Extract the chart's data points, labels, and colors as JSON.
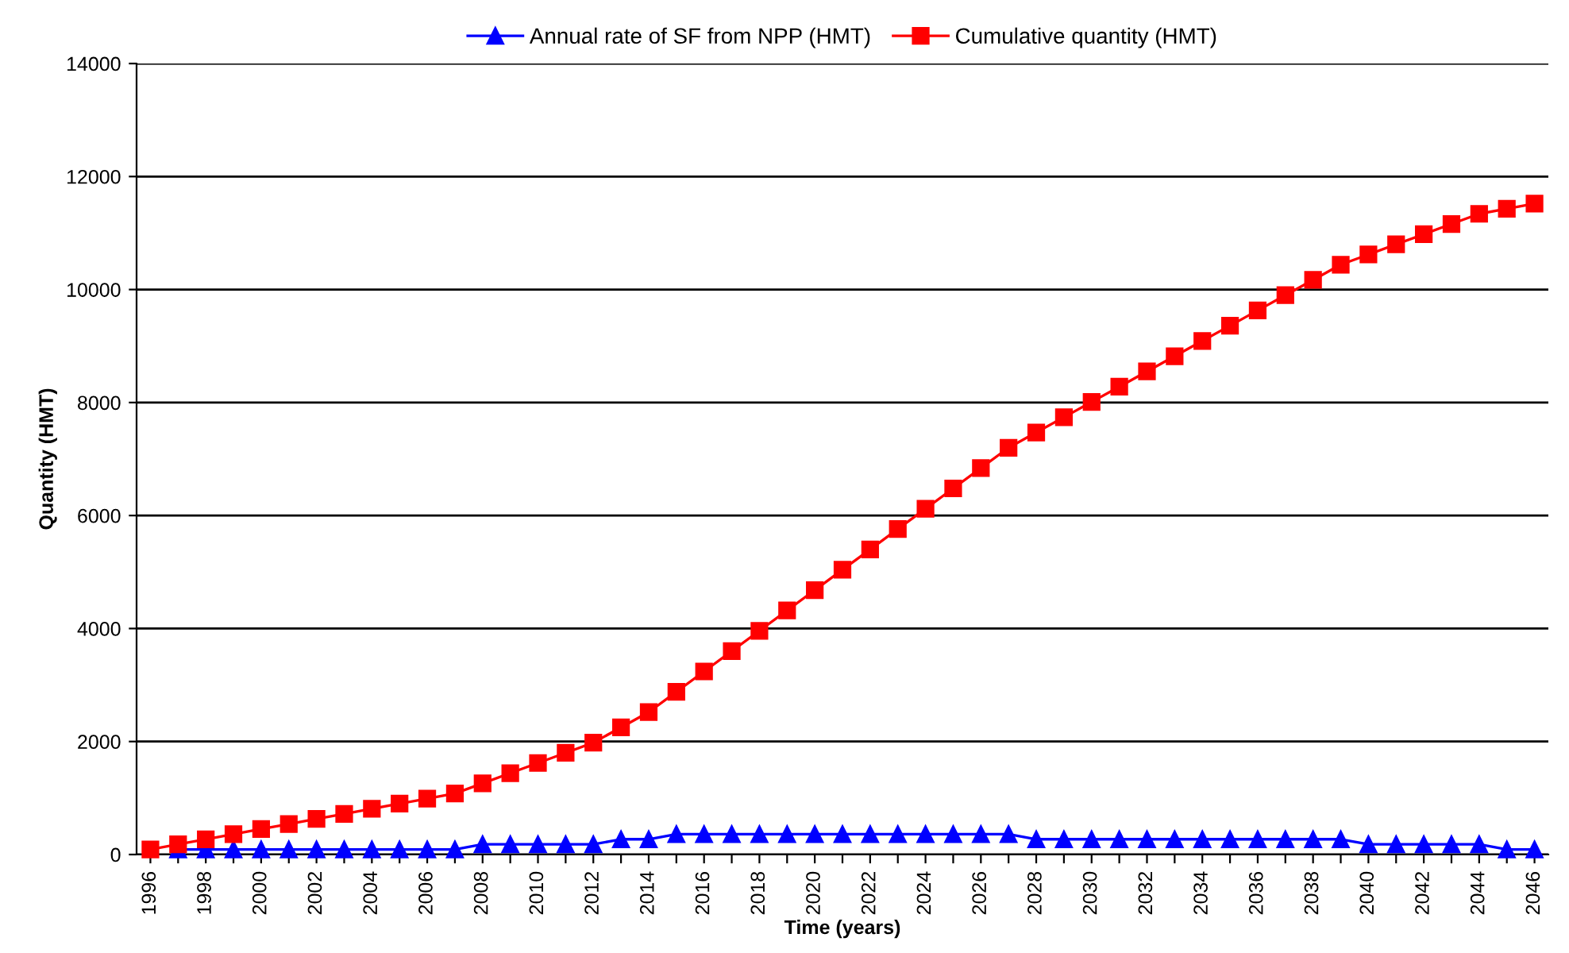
{
  "chart_data": {
    "type": "line",
    "xlabel": "Time (years)",
    "ylabel": "Quantity (HMT)",
    "categories": [
      "1996",
      null,
      "1998",
      null,
      "2000",
      null,
      "2002",
      null,
      "2004",
      null,
      "2006",
      null,
      "2008",
      null,
      "2010",
      null,
      "2012",
      null,
      "2014",
      null,
      "2016",
      null,
      "2018",
      null,
      "2020",
      null,
      "2022",
      null,
      "2024",
      null,
      "2026",
      null,
      "2028",
      null,
      "2030",
      null,
      "2032",
      null,
      "2034",
      null,
      "2036",
      null,
      "2038",
      null,
      "2040",
      null,
      "2042",
      null,
      "2044",
      null,
      "2046"
    ],
    "series": [
      {
        "name": "Annual rate of SF from NPP (HMT)",
        "color": "#0000ff",
        "marker": "triangle",
        "values": [
          null,
          90,
          90,
          90,
          90,
          90,
          90,
          90,
          90,
          90,
          90,
          90,
          180,
          180,
          180,
          180,
          180,
          270,
          270,
          360,
          360,
          360,
          360,
          360,
          360,
          360,
          360,
          360,
          360,
          360,
          360,
          360,
          270,
          270,
          270,
          270,
          270,
          270,
          270,
          270,
          270,
          270,
          270,
          270,
          180,
          180,
          180,
          180,
          180,
          90,
          90
        ]
      },
      {
        "name": "Cumulative quantity (HMT)",
        "color": "#ff0000",
        "marker": "square",
        "values": [
          90,
          180,
          270,
          360,
          450,
          540,
          630,
          720,
          810,
          900,
          990,
          1080,
          1260,
          1440,
          1620,
          1800,
          1980,
          2250,
          2520,
          2880,
          3240,
          3600,
          3960,
          4320,
          4680,
          5040,
          5400,
          5760,
          6120,
          6480,
          6840,
          7200,
          7470,
          7740,
          8010,
          8280,
          8550,
          8820,
          9090,
          9360,
          9630,
          9900,
          10170,
          10440,
          10620,
          10800,
          10980,
          11160,
          11340,
          11430,
          11520
        ]
      }
    ],
    "ylim": [
      0,
      14000
    ],
    "yticks": [
      0,
      2000,
      4000,
      6000,
      8000,
      10000,
      12000,
      14000
    ],
    "grid": "y",
    "legend": "top",
    "line_style": "solid"
  }
}
